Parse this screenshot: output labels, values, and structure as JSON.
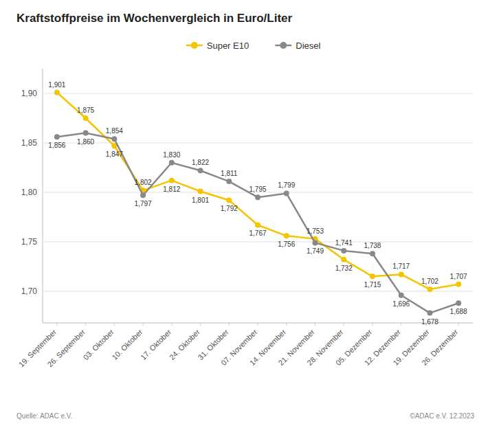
{
  "chart_data": {
    "type": "line",
    "title": "Kraftstoffpreise im Wochenvergleich in Euro/Liter",
    "annotations": [
      "Quelle: ADAC e.V.",
      "©ADAC e.V. 12.2023"
    ],
    "categories": [
      "19. September",
      "26. September",
      "03. Oktober",
      "10. Oktober",
      "17. Oktober",
      "24. Oktober",
      "31. Oktober",
      "07. November",
      "14. November",
      "21. November",
      "28. November",
      "05. Dezember",
      "12. Dezember",
      "19. Dezember",
      "26. Dezember"
    ],
    "series": [
      {
        "name": "Super E10",
        "color": "#F5C400",
        "values": [
          1.901,
          1.875,
          1.847,
          1.802,
          1.812,
          1.801,
          1.792,
          1.767,
          1.756,
          1.753,
          1.732,
          1.715,
          1.717,
          1.702,
          1.707
        ],
        "value_labels": [
          "1,901",
          "1,875",
          "1,847",
          "1,802",
          "1,812",
          "1,801",
          "1,792",
          "1,767",
          "1,756",
          "1,753",
          "1,732",
          "1,715",
          "1,717",
          "1,702",
          "1,707"
        ]
      },
      {
        "name": "Diesel",
        "color": "#888888",
        "values": [
          1.856,
          1.86,
          1.854,
          1.797,
          1.83,
          1.822,
          1.811,
          1.795,
          1.799,
          1.749,
          1.741,
          1.738,
          1.696,
          1.678,
          1.688
        ],
        "value_labels": [
          "1,856",
          "1,860",
          "1,854",
          "1,797",
          "1,830",
          "1,822",
          "1,811",
          "1,795",
          "1,799",
          "1,749",
          "1,741",
          "1,738",
          "1,696",
          "1,678",
          "1,688"
        ]
      }
    ],
    "ylim": [
      1.668,
      1.925
    ],
    "yticks": [
      {
        "value": 1.7,
        "label": "1,70"
      },
      {
        "value": 1.75,
        "label": "1,75"
      },
      {
        "value": 1.8,
        "label": "1,80"
      },
      {
        "value": 1.85,
        "label": "1,85"
      },
      {
        "value": 1.9,
        "label": "1,90"
      }
    ],
    "grid": true,
    "legend": "top",
    "marker": "circle",
    "data_labels": true
  }
}
